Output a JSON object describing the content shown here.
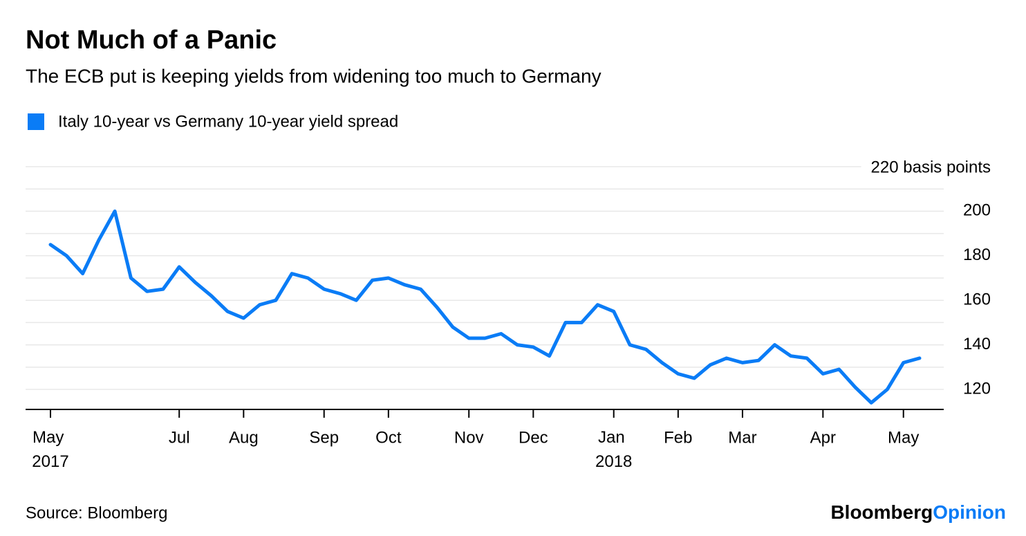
{
  "chart_data": {
    "type": "line",
    "title": "Not Much of a Panic",
    "subtitle": "The ECB put is keeping yields from widening too much to Germany",
    "source": "Source: Bloomberg",
    "logo": {
      "first": "Bloomberg",
      "second": "Opinion"
    },
    "categories": [
      "May 2017",
      null,
      null,
      null,
      null,
      null,
      null,
      null,
      "Jul",
      null,
      null,
      null,
      "Aug",
      null,
      null,
      null,
      null,
      "Sep",
      null,
      null,
      null,
      "Oct",
      null,
      null,
      null,
      null,
      "Nov",
      null,
      null,
      null,
      "Dec",
      null,
      null,
      null,
      null,
      "Jan 2018",
      null,
      null,
      null,
      "Feb",
      null,
      null,
      null,
      "Mar",
      null,
      null,
      null,
      null,
      "Apr",
      null,
      null,
      null,
      null,
      "May",
      null
    ],
    "series": [
      {
        "name": "Italy 10-year vs Germany 10-year yield spread",
        "color": "#0a7cf6",
        "values": [
          185,
          180,
          172,
          187,
          200,
          170,
          164,
          165,
          175,
          168,
          162,
          155,
          152,
          158,
          160,
          172,
          170,
          165,
          163,
          160,
          169,
          170,
          167,
          165,
          157,
          148,
          143,
          143,
          145,
          140,
          139,
          135,
          150,
          150,
          158,
          155,
          140,
          138,
          132,
          127,
          125,
          131,
          134,
          132,
          133,
          140,
          135,
          134,
          127,
          129,
          121,
          114,
          120,
          132,
          134
        ]
      }
    ],
    "ylim": [
      111,
      220
    ],
    "yticks": [
      120,
      140,
      160,
      180,
      200,
      {
        "value": 220,
        "label": "220 basis points"
      }
    ],
    "ygrid": [
      130,
      150,
      170,
      190,
      210
    ],
    "grid": true,
    "legend": "top-left"
  }
}
